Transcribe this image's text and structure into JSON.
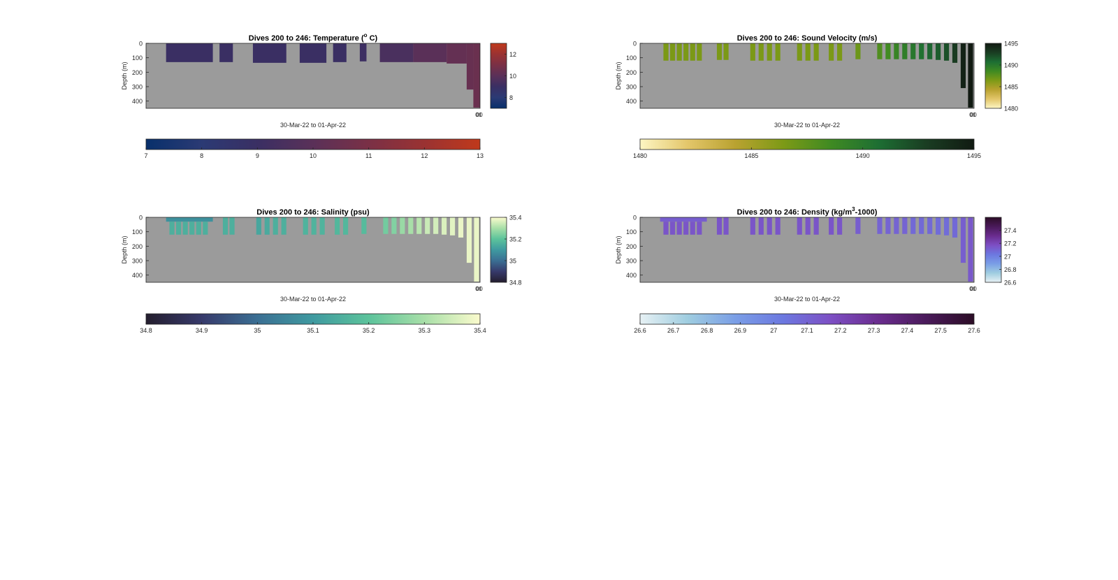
{
  "figure": {
    "background": "#ffffff",
    "axes_bg": "#9b9b9b"
  },
  "chart_data": [
    {
      "type": "heatmap",
      "title": "Dives 200 to 246: Temperature (",
      "title_sup": "o",
      "title_after": " C)",
      "ylabel": "Depth (m)",
      "xlabel": "30-Mar-22 to 01-Apr-22",
      "xtick_labels": [
        "01",
        "00"
      ],
      "yticks": [
        0,
        100,
        200,
        300,
        400
      ],
      "ylim": [
        0,
        450
      ],
      "xlim": [
        0,
        1
      ],
      "grid": false,
      "colormap": [
        "#08306b",
        "#2b3a74",
        "#3a2f63",
        "#5a3058",
        "#7a3046",
        "#9a3232",
        "#c0391b"
      ],
      "clim": [
        7,
        13
      ],
      "side_colorbar_ticks": [
        8,
        10,
        12
      ],
      "bottom_colorbar_ticks": [
        7,
        8,
        9,
        10,
        11,
        12,
        13
      ],
      "segments": [
        {
          "x0": 0.06,
          "x1": 0.2,
          "d0": 0,
          "d1": 130,
          "v": 9.0
        },
        {
          "x0": 0.22,
          "x1": 0.26,
          "d0": 0,
          "d1": 130,
          "v": 9.0
        },
        {
          "x0": 0.32,
          "x1": 0.42,
          "d0": 0,
          "d1": 135,
          "v": 9.0
        },
        {
          "x0": 0.46,
          "x1": 0.54,
          "d0": 0,
          "d1": 135,
          "v": 9.0
        },
        {
          "x0": 0.56,
          "x1": 0.6,
          "d0": 0,
          "d1": 130,
          "v": 9.0
        },
        {
          "x0": 0.64,
          "x1": 0.66,
          "d0": 0,
          "d1": 125,
          "v": 9.1
        },
        {
          "x0": 0.7,
          "x1": 0.8,
          "d0": 0,
          "d1": 130,
          "v": 9.5
        },
        {
          "x0": 0.8,
          "x1": 0.9,
          "d0": 0,
          "d1": 130,
          "v": 10.0
        },
        {
          "x0": 0.9,
          "x1": 0.96,
          "d0": 0,
          "d1": 140,
          "v": 10.3
        },
        {
          "x0": 0.96,
          "x1": 0.98,
          "d0": 0,
          "d1": 320,
          "v": 10.4
        },
        {
          "x0": 0.98,
          "x1": 1.0,
          "d0": 0,
          "d1": 445,
          "v": 10.5
        }
      ]
    },
    {
      "type": "heatmap",
      "title": "Dives 200 to 246: Sound Velocity (m/s)",
      "title_sup": "",
      "title_after": "",
      "ylabel": "Depth (m)",
      "xlabel": "30-Mar-22 to 01-Apr-22",
      "xtick_labels": [
        "01",
        "00"
      ],
      "yticks": [
        0,
        100,
        200,
        300,
        400
      ],
      "ylim": [
        0,
        450
      ],
      "xlim": [
        0,
        1
      ],
      "grid": false,
      "colormap": [
        "#fdf6c3",
        "#e3c66a",
        "#b9a230",
        "#7d9a16",
        "#3f8a22",
        "#1d6e33",
        "#1a3d22",
        "#111a12"
      ],
      "clim": [
        1480,
        1495
      ],
      "side_colorbar_ticks": [
        1480,
        1485,
        1490,
        1495
      ],
      "bottom_colorbar_ticks": [
        1480,
        1485,
        1490,
        1495
      ],
      "segments": [
        {
          "x0": 0.07,
          "x1": 0.085,
          "d0": 0,
          "d1": 120,
          "v": 1486.5
        },
        {
          "x0": 0.09,
          "x1": 0.105,
          "d0": 0,
          "d1": 120,
          "v": 1486.5
        },
        {
          "x0": 0.11,
          "x1": 0.125,
          "d0": 0,
          "d1": 120,
          "v": 1486.5
        },
        {
          "x0": 0.13,
          "x1": 0.145,
          "d0": 0,
          "d1": 120,
          "v": 1486.5
        },
        {
          "x0": 0.15,
          "x1": 0.165,
          "d0": 0,
          "d1": 120,
          "v": 1486.5
        },
        {
          "x0": 0.17,
          "x1": 0.185,
          "d0": 0,
          "d1": 120,
          "v": 1486.5
        },
        {
          "x0": 0.23,
          "x1": 0.245,
          "d0": 0,
          "d1": 115,
          "v": 1486.5
        },
        {
          "x0": 0.25,
          "x1": 0.265,
          "d0": 0,
          "d1": 115,
          "v": 1486.5
        },
        {
          "x0": 0.33,
          "x1": 0.345,
          "d0": 0,
          "d1": 120,
          "v": 1486.5
        },
        {
          "x0": 0.355,
          "x1": 0.37,
          "d0": 0,
          "d1": 120,
          "v": 1486.5
        },
        {
          "x0": 0.38,
          "x1": 0.395,
          "d0": 0,
          "d1": 120,
          "v": 1486.5
        },
        {
          "x0": 0.405,
          "x1": 0.42,
          "d0": 0,
          "d1": 120,
          "v": 1486.5
        },
        {
          "x0": 0.47,
          "x1": 0.485,
          "d0": 0,
          "d1": 120,
          "v": 1486.5
        },
        {
          "x0": 0.495,
          "x1": 0.51,
          "d0": 0,
          "d1": 120,
          "v": 1486.5
        },
        {
          "x0": 0.52,
          "x1": 0.535,
          "d0": 0,
          "d1": 120,
          "v": 1486.5
        },
        {
          "x0": 0.565,
          "x1": 0.58,
          "d0": 0,
          "d1": 120,
          "v": 1486.5
        },
        {
          "x0": 0.59,
          "x1": 0.605,
          "d0": 0,
          "d1": 120,
          "v": 1486.5
        },
        {
          "x0": 0.645,
          "x1": 0.66,
          "d0": 0,
          "d1": 110,
          "v": 1487.0
        },
        {
          "x0": 0.71,
          "x1": 0.725,
          "d0": 0,
          "d1": 110,
          "v": 1488.0
        },
        {
          "x0": 0.735,
          "x1": 0.75,
          "d0": 0,
          "d1": 110,
          "v": 1488.5
        },
        {
          "x0": 0.76,
          "x1": 0.775,
          "d0": 0,
          "d1": 110,
          "v": 1489.0
        },
        {
          "x0": 0.785,
          "x1": 0.8,
          "d0": 0,
          "d1": 110,
          "v": 1489.5
        },
        {
          "x0": 0.81,
          "x1": 0.825,
          "d0": 0,
          "d1": 110,
          "v": 1490.0
        },
        {
          "x0": 0.835,
          "x1": 0.85,
          "d0": 0,
          "d1": 110,
          "v": 1490.5
        },
        {
          "x0": 0.86,
          "x1": 0.875,
          "d0": 0,
          "d1": 110,
          "v": 1491.0
        },
        {
          "x0": 0.885,
          "x1": 0.9,
          "d0": 0,
          "d1": 115,
          "v": 1491.5
        },
        {
          "x0": 0.91,
          "x1": 0.925,
          "d0": 0,
          "d1": 120,
          "v": 1492.0
        },
        {
          "x0": 0.935,
          "x1": 0.95,
          "d0": 0,
          "d1": 135,
          "v": 1493.0
        },
        {
          "x0": 0.96,
          "x1": 0.975,
          "d0": 0,
          "d1": 310,
          "v": 1494.5
        },
        {
          "x0": 0.982,
          "x1": 0.997,
          "d0": 0,
          "d1": 445,
          "v": 1495.0
        }
      ]
    },
    {
      "type": "heatmap",
      "title": "Dives 200 to 246: Salinity (psu)",
      "title_sup": "",
      "title_after": "",
      "ylabel": "Depth (m)",
      "xlabel": "30-Mar-22 to 01-Apr-22",
      "xtick_labels": [
        "01",
        "00"
      ],
      "yticks": [
        0,
        100,
        200,
        300,
        400
      ],
      "ylim": [
        0,
        450
      ],
      "xlim": [
        0,
        1
      ],
      "grid": false,
      "colormap": [
        "#241e2e",
        "#373a6b",
        "#3b6f93",
        "#3f9aa0",
        "#5cc39b",
        "#a8dfa8",
        "#fbfbcd"
      ],
      "clim": [
        34.8,
        35.4
      ],
      "side_colorbar_ticks": [
        34.8,
        35,
        35.2,
        35.4
      ],
      "bottom_colorbar_ticks": [
        34.8,
        34.9,
        35,
        35.1,
        35.2,
        35.3,
        35.4
      ],
      "segments": [
        {
          "x0": 0.06,
          "x1": 0.2,
          "d0": 0,
          "d1": 30,
          "v": 35.08
        },
        {
          "x0": 0.07,
          "x1": 0.085,
          "d0": 30,
          "d1": 120,
          "v": 35.15
        },
        {
          "x0": 0.09,
          "x1": 0.105,
          "d0": 30,
          "d1": 120,
          "v": 35.15
        },
        {
          "x0": 0.11,
          "x1": 0.125,
          "d0": 30,
          "d1": 120,
          "v": 35.15
        },
        {
          "x0": 0.13,
          "x1": 0.145,
          "d0": 30,
          "d1": 120,
          "v": 35.15
        },
        {
          "x0": 0.15,
          "x1": 0.165,
          "d0": 30,
          "d1": 120,
          "v": 35.15
        },
        {
          "x0": 0.17,
          "x1": 0.185,
          "d0": 30,
          "d1": 120,
          "v": 35.15
        },
        {
          "x0": 0.23,
          "x1": 0.245,
          "d0": 0,
          "d1": 120,
          "v": 35.15
        },
        {
          "x0": 0.25,
          "x1": 0.265,
          "d0": 0,
          "d1": 120,
          "v": 35.15
        },
        {
          "x0": 0.33,
          "x1": 0.345,
          "d0": 0,
          "d1": 120,
          "v": 35.13
        },
        {
          "x0": 0.355,
          "x1": 0.37,
          "d0": 0,
          "d1": 120,
          "v": 35.14
        },
        {
          "x0": 0.38,
          "x1": 0.395,
          "d0": 0,
          "d1": 120,
          "v": 35.15
        },
        {
          "x0": 0.405,
          "x1": 0.42,
          "d0": 0,
          "d1": 120,
          "v": 35.15
        },
        {
          "x0": 0.47,
          "x1": 0.485,
          "d0": 0,
          "d1": 120,
          "v": 35.16
        },
        {
          "x0": 0.495,
          "x1": 0.51,
          "d0": 0,
          "d1": 120,
          "v": 35.16
        },
        {
          "x0": 0.52,
          "x1": 0.535,
          "d0": 0,
          "d1": 120,
          "v": 35.16
        },
        {
          "x0": 0.565,
          "x1": 0.58,
          "d0": 0,
          "d1": 120,
          "v": 35.17
        },
        {
          "x0": 0.59,
          "x1": 0.605,
          "d0": 0,
          "d1": 120,
          "v": 35.17
        },
        {
          "x0": 0.645,
          "x1": 0.66,
          "d0": 0,
          "d1": 115,
          "v": 35.18
        },
        {
          "x0": 0.71,
          "x1": 0.725,
          "d0": 0,
          "d1": 115,
          "v": 35.23
        },
        {
          "x0": 0.735,
          "x1": 0.75,
          "d0": 0,
          "d1": 115,
          "v": 35.25
        },
        {
          "x0": 0.76,
          "x1": 0.775,
          "d0": 0,
          "d1": 115,
          "v": 35.28
        },
        {
          "x0": 0.785,
          "x1": 0.8,
          "d0": 0,
          "d1": 115,
          "v": 35.3
        },
        {
          "x0": 0.81,
          "x1": 0.825,
          "d0": 0,
          "d1": 115,
          "v": 35.32
        },
        {
          "x0": 0.835,
          "x1": 0.85,
          "d0": 0,
          "d1": 115,
          "v": 35.34
        },
        {
          "x0": 0.86,
          "x1": 0.875,
          "d0": 0,
          "d1": 115,
          "v": 35.35
        },
        {
          "x0": 0.885,
          "x1": 0.9,
          "d0": 0,
          "d1": 120,
          "v": 35.36
        },
        {
          "x0": 0.91,
          "x1": 0.925,
          "d0": 0,
          "d1": 125,
          "v": 35.37
        },
        {
          "x0": 0.935,
          "x1": 0.95,
          "d0": 0,
          "d1": 140,
          "v": 35.38
        },
        {
          "x0": 0.96,
          "x1": 0.975,
          "d0": 0,
          "d1": 315,
          "v": 35.38
        },
        {
          "x0": 0.982,
          "x1": 0.997,
          "d0": 0,
          "d1": 445,
          "v": 35.38
        }
      ]
    },
    {
      "type": "heatmap",
      "title": "Dives 200 to 246: Density (kg/m",
      "title_sup": "3",
      "title_after": "-1000)",
      "ylabel": "Depth (m)",
      "xlabel": "30-Mar-22 to 01-Apr-22",
      "xtick_labels": [
        "01",
        "00"
      ],
      "yticks": [
        0,
        100,
        200,
        300,
        400
      ],
      "ylim": [
        0,
        450
      ],
      "xlim": [
        0,
        1
      ],
      "grid": false,
      "colormap": [
        "#e7f1f4",
        "#9fcde0",
        "#7a9ee6",
        "#6c78e0",
        "#7d4fc4",
        "#6a2c8e",
        "#4a1a5a",
        "#2c0d26"
      ],
      "clim": [
        26.6,
        27.6
      ],
      "side_colorbar_ticks": [
        26.6,
        26.8,
        27,
        27.2,
        27.4
      ],
      "bottom_colorbar_ticks": [
        26.6,
        26.7,
        26.8,
        26.9,
        27,
        27.1,
        27.2,
        27.3,
        27.4,
        27.5,
        27.6
      ],
      "segments": [
        {
          "x0": 0.06,
          "x1": 0.2,
          "d0": 0,
          "d1": 30,
          "v": 27.12
        },
        {
          "x0": 0.07,
          "x1": 0.085,
          "d0": 30,
          "d1": 120,
          "v": 27.15
        },
        {
          "x0": 0.09,
          "x1": 0.105,
          "d0": 30,
          "d1": 120,
          "v": 27.15
        },
        {
          "x0": 0.11,
          "x1": 0.125,
          "d0": 30,
          "d1": 120,
          "v": 27.15
        },
        {
          "x0": 0.13,
          "x1": 0.145,
          "d0": 30,
          "d1": 120,
          "v": 27.15
        },
        {
          "x0": 0.15,
          "x1": 0.165,
          "d0": 30,
          "d1": 120,
          "v": 27.15
        },
        {
          "x0": 0.17,
          "x1": 0.185,
          "d0": 30,
          "d1": 120,
          "v": 27.15
        },
        {
          "x0": 0.23,
          "x1": 0.245,
          "d0": 0,
          "d1": 120,
          "v": 27.15
        },
        {
          "x0": 0.25,
          "x1": 0.265,
          "d0": 0,
          "d1": 120,
          "v": 27.15
        },
        {
          "x0": 0.33,
          "x1": 0.345,
          "d0": 0,
          "d1": 120,
          "v": 27.15
        },
        {
          "x0": 0.355,
          "x1": 0.37,
          "d0": 0,
          "d1": 120,
          "v": 27.15
        },
        {
          "x0": 0.38,
          "x1": 0.395,
          "d0": 0,
          "d1": 120,
          "v": 27.15
        },
        {
          "x0": 0.405,
          "x1": 0.42,
          "d0": 0,
          "d1": 120,
          "v": 27.15
        },
        {
          "x0": 0.47,
          "x1": 0.485,
          "d0": 0,
          "d1": 120,
          "v": 27.15
        },
        {
          "x0": 0.495,
          "x1": 0.51,
          "d0": 0,
          "d1": 120,
          "v": 27.15
        },
        {
          "x0": 0.52,
          "x1": 0.535,
          "d0": 0,
          "d1": 120,
          "v": 27.15
        },
        {
          "x0": 0.565,
          "x1": 0.58,
          "d0": 0,
          "d1": 120,
          "v": 27.15
        },
        {
          "x0": 0.59,
          "x1": 0.605,
          "d0": 0,
          "d1": 120,
          "v": 27.15
        },
        {
          "x0": 0.645,
          "x1": 0.66,
          "d0": 0,
          "d1": 115,
          "v": 27.12
        },
        {
          "x0": 0.71,
          "x1": 0.725,
          "d0": 0,
          "d1": 115,
          "v": 27.1
        },
        {
          "x0": 0.735,
          "x1": 0.75,
          "d0": 0,
          "d1": 115,
          "v": 27.1
        },
        {
          "x0": 0.76,
          "x1": 0.775,
          "d0": 0,
          "d1": 115,
          "v": 27.1
        },
        {
          "x0": 0.785,
          "x1": 0.8,
          "d0": 0,
          "d1": 115,
          "v": 27.1
        },
        {
          "x0": 0.81,
          "x1": 0.825,
          "d0": 0,
          "d1": 115,
          "v": 27.08
        },
        {
          "x0": 0.835,
          "x1": 0.85,
          "d0": 0,
          "d1": 115,
          "v": 27.08
        },
        {
          "x0": 0.86,
          "x1": 0.875,
          "d0": 0,
          "d1": 115,
          "v": 27.08
        },
        {
          "x0": 0.885,
          "x1": 0.9,
          "d0": 0,
          "d1": 120,
          "v": 27.07
        },
        {
          "x0": 0.91,
          "x1": 0.925,
          "d0": 0,
          "d1": 125,
          "v": 27.07
        },
        {
          "x0": 0.935,
          "x1": 0.95,
          "d0": 0,
          "d1": 140,
          "v": 27.08
        },
        {
          "x0": 0.96,
          "x1": 0.975,
          "d0": 0,
          "d1": 315,
          "v": 27.12
        },
        {
          "x0": 0.982,
          "x1": 0.997,
          "d0": 0,
          "d1": 445,
          "v": 27.14
        }
      ]
    }
  ]
}
